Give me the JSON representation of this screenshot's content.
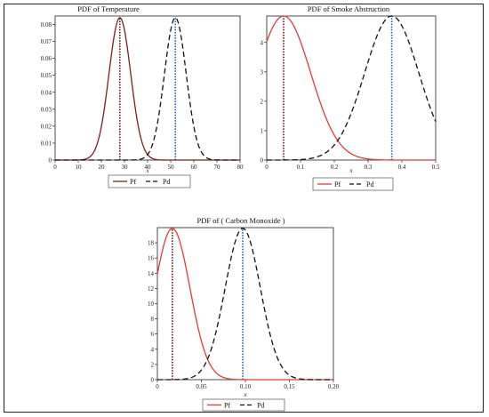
{
  "colors": {
    "pf": "#e23a3a",
    "pd": "#111111",
    "vline_pf": "#6b1010",
    "vline_pd": "#1f5fa8",
    "axis": "#222222"
  },
  "chart_data": [
    {
      "type": "line",
      "title": "PDF of Temperature",
      "xlabel": "x",
      "ylabel": "",
      "xlim": [
        0,
        80
      ],
      "ylim": [
        0,
        0.085
      ],
      "xticks": [
        0,
        10,
        20,
        30,
        40,
        50,
        60,
        70,
        80
      ],
      "yticks": [
        0,
        0.01,
        0.02,
        0.03,
        0.04,
        0.05,
        0.06,
        0.07,
        0.08
      ],
      "xtick_labels": [
        "0",
        "10",
        "20",
        "30",
        "40",
        "50",
        "60",
        "70",
        "80"
      ],
      "ytick_labels": [
        "0",
        "0.01",
        "0.02",
        "0.03",
        "0.04",
        "0.05",
        "0.06",
        "0.07",
        "0.08"
      ],
      "legend_position": "bottom",
      "series": [
        {
          "name": "Pf",
          "style": "solid",
          "color": "#7a1f1f",
          "curve": "normal",
          "mean": 28,
          "sd": 4.7,
          "peak": 0.084
        },
        {
          "name": "Pd",
          "style": "dashed",
          "color": "#111111",
          "curve": "normal",
          "mean": 52,
          "sd": 4.7,
          "peak": 0.084
        }
      ],
      "vlines": [
        {
          "x": 28,
          "color": "#6b1010"
        },
        {
          "x": 52,
          "color": "#1f5fa8"
        }
      ]
    },
    {
      "type": "line",
      "title": "PDF of Smoke Abstruction",
      "xlabel": "x",
      "ylabel": "",
      "xlim": [
        0,
        0.5
      ],
      "ylim": [
        0,
        4.9
      ],
      "xticks": [
        0,
        0.1,
        0.2,
        0.3,
        0.4,
        0.5
      ],
      "yticks": [
        0,
        1,
        2,
        3,
        4
      ],
      "xtick_labels": [
        "0",
        "0.1",
        "0.2",
        "0.3",
        "0.4",
        "0.5"
      ],
      "ytick_labels": [
        "0",
        "1",
        "2",
        "3",
        "4"
      ],
      "legend_position": "bottom",
      "series": [
        {
          "name": "Pf",
          "style": "solid",
          "color": "#e23a3a",
          "curve": "normal",
          "mean": 0.05,
          "sd": 0.08,
          "peak": 4.9
        },
        {
          "name": "Pd",
          "style": "dashed",
          "color": "#111111",
          "curve": "normal",
          "mean": 0.37,
          "sd": 0.08,
          "peak": 4.9
        }
      ],
      "vlines": [
        {
          "x": 0.05,
          "color": "#6b1010"
        },
        {
          "x": 0.37,
          "color": "#1f5fa8"
        }
      ]
    },
    {
      "type": "line",
      "title": "PDF of ( Carbon Monoxide )",
      "xlabel": "x",
      "ylabel": "",
      "xlim": [
        0,
        0.2
      ],
      "ylim": [
        0,
        20
      ],
      "xticks": [
        0,
        0.05,
        0.1,
        0.15,
        0.2
      ],
      "yticks": [
        0,
        2,
        4,
        6,
        8,
        10,
        12,
        14,
        16,
        18
      ],
      "xtick_labels": [
        "0",
        "0.05",
        "0.10",
        "0.15",
        "0.20"
      ],
      "ytick_labels": [
        "0",
        "2",
        "4",
        "6",
        "8",
        "10",
        "12",
        "14",
        "16",
        "18"
      ],
      "legend_position": "bottom",
      "series": [
        {
          "name": "Pf",
          "style": "solid",
          "color": "#e23a3a",
          "curve": "normal",
          "mean": 0.017,
          "sd": 0.02,
          "peak": 19.9
        },
        {
          "name": "Pd",
          "style": "dashed",
          "color": "#111111",
          "curve": "normal",
          "mean": 0.097,
          "sd": 0.02,
          "peak": 19.9
        }
      ],
      "vlines": [
        {
          "x": 0.017,
          "color": "#6b1010"
        },
        {
          "x": 0.097,
          "color": "#1f5fa8"
        }
      ]
    }
  ]
}
